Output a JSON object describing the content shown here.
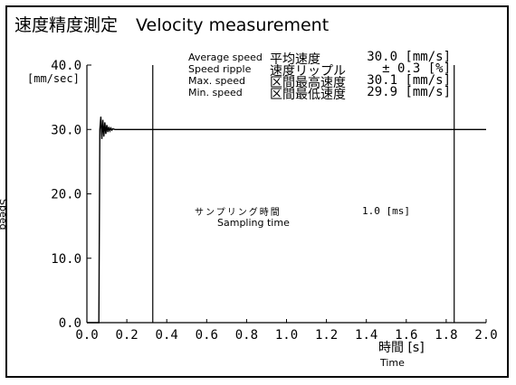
{
  "header": {
    "title_ja": "速度精度測定",
    "title_en": "Velocity measurement"
  },
  "stats": [
    {
      "en": "Average speed",
      "ja": "平均速度",
      "value": "30.0 [mm/s]"
    },
    {
      "en": "Speed ripple",
      "ja": "速度リップル",
      "value": "± 0.3 [%]"
    },
    {
      "en": "Max. speed",
      "ja": "区間最高速度",
      "value": "30.1 [mm/s]"
    },
    {
      "en": "Min. speed",
      "ja": "区間最低速度",
      "value": "29.9 [mm/s]"
    }
  ],
  "sampling": {
    "ja": "サンプリング時間",
    "en": "Sampling time",
    "value": "1.0 [ms]"
  },
  "chart_data": {
    "type": "line",
    "xlabel": "Time",
    "xlabel_ja": "時間 [s]",
    "ylabel": "Speed",
    "y_unit": "[mm/sec]",
    "xlim": [
      0.0,
      2.0
    ],
    "ylim": [
      0.0,
      40.0
    ],
    "x_ticks": [
      "0.0",
      "0.2",
      "0.4",
      "0.6",
      "0.8",
      "1.0",
      "1.2",
      "1.4",
      "1.6",
      "1.8",
      "2.0"
    ],
    "y_ticks": [
      "0.0",
      "10.0",
      "20.0",
      "30.0",
      "40.0"
    ],
    "markers_x": [
      0.33,
      1.84
    ],
    "series": [
      {
        "x": [
          0.0,
          0.06,
          0.065,
          0.07,
          0.075,
          0.08,
          0.085,
          0.09,
          0.095,
          0.1,
          0.105,
          0.11,
          0.115,
          0.12,
          0.125,
          0.13,
          0.14,
          0.15,
          0.16,
          0.18,
          0.2,
          2.0
        ],
        "y": [
          0.0,
          0.0,
          30.0,
          32.0,
          28.5,
          31.5,
          28.9,
          31.1,
          29.3,
          30.7,
          29.6,
          30.4,
          29.8,
          30.2,
          29.9,
          30.1,
          30.0,
          30.0,
          30.0,
          30.0,
          30.0,
          30.0
        ]
      }
    ]
  }
}
